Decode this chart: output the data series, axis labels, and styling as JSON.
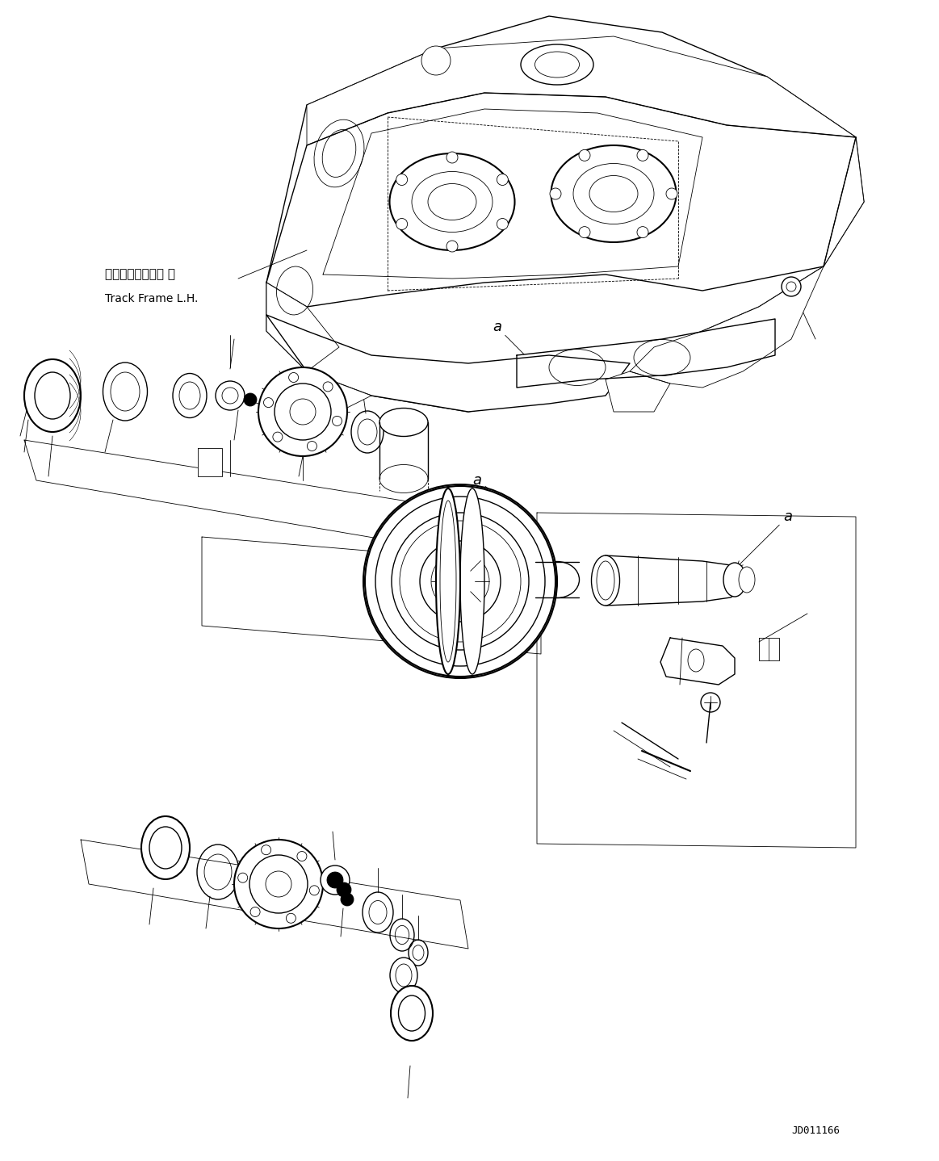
{
  "background_color": "#ffffff",
  "line_color": "#000000",
  "fig_width": 11.63,
  "fig_height": 14.38,
  "dpi": 100,
  "text_track_frame_ja": "トラックフレーム 左",
  "text_track_frame_en": "Track Frame L.H.",
  "text_id": "JD011166",
  "lw_thin": 0.6,
  "lw_med": 1.0,
  "lw_thick": 1.5
}
